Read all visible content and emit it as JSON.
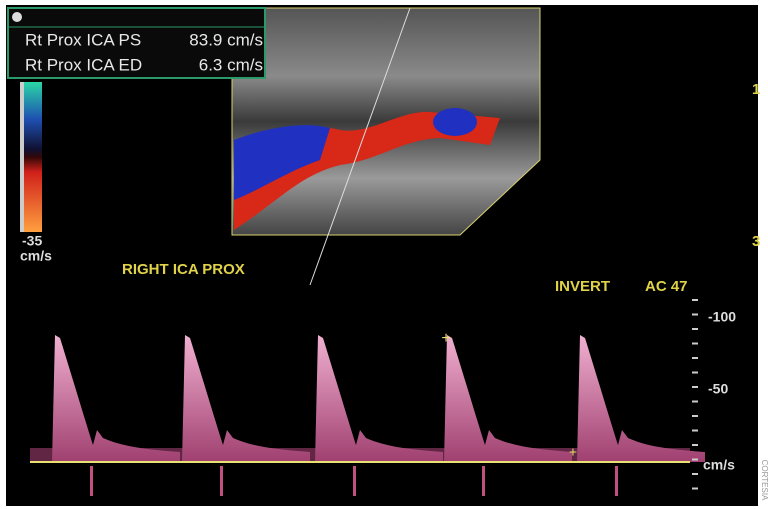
{
  "measurements": [
    {
      "label": "Rt Prox ICA PS",
      "value": "83.9 cm/s"
    },
    {
      "label": "Rt Prox ICA ED",
      "value": "6.3 cm/s"
    }
  ],
  "color_scale": {
    "min": "-35",
    "unit": "cm/s"
  },
  "vessel_label": "RIGHT ICA PROX",
  "mode": "INVERT",
  "acoustic_output": "AC 47",
  "velocity_scale": {
    "ticks": [
      "-100",
      "-50"
    ],
    "unit": "cm/s"
  },
  "depth_marks": [
    "1",
    "3"
  ],
  "credit": "CORTESIA"
}
